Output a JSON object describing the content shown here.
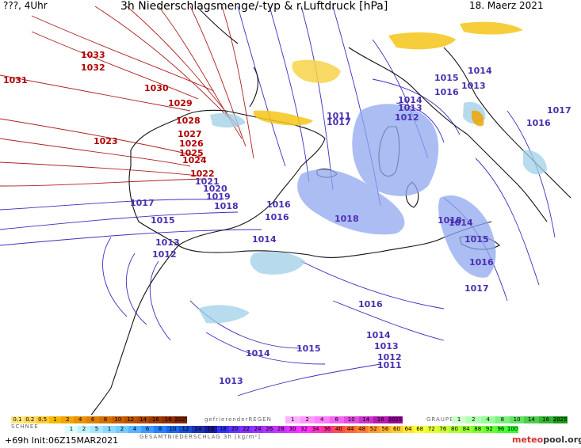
{
  "header": {
    "left": "???, 4Uhr",
    "title": "3h Niederschlagsmenge/-typ & r.Luftdruck [hPa]",
    "date": "18. Maerz 2021"
  },
  "isobar_labels": [
    {
      "text": "1033",
      "color": "#b00000"
    },
    {
      "text": "1032",
      "color": "#b00000"
    },
    {
      "text": "1031",
      "color": "#b00000"
    },
    {
      "text": "1030",
      "color": "#b00000"
    },
    {
      "text": "1029",
      "color": "#b00000"
    },
    {
      "text": "1028",
      "color": "#b00000"
    },
    {
      "text": "1027",
      "color": "#b00000"
    },
    {
      "text": "1026",
      "color": "#b00000"
    },
    {
      "text": "1025",
      "color": "#b00000"
    },
    {
      "text": "1024",
      "color": "#b00000"
    },
    {
      "text": "1023",
      "color": "#b00000"
    },
    {
      "text": "1022",
      "color": "#b00000"
    },
    {
      "text": "1021",
      "color": "#4a2fb0"
    },
    {
      "text": "1020",
      "color": "#4a2fb0"
    },
    {
      "text": "1019",
      "color": "#4a2fb0"
    },
    {
      "text": "1018",
      "color": "#4a2fb0"
    },
    {
      "text": "1017",
      "color": "#4a2fb0"
    },
    {
      "text": "1016",
      "color": "#4a2fb0"
    },
    {
      "text": "1015",
      "color": "#4a2fb0"
    },
    {
      "text": "1014",
      "color": "#4a2fb0"
    },
    {
      "text": "1013",
      "color": "#4a2fb0"
    },
    {
      "text": "1012",
      "color": "#4a2fb0"
    },
    {
      "text": "1011",
      "color": "#4a2fb0"
    },
    {
      "text": "1017",
      "color": "#4a2fb0"
    },
    {
      "text": "1016",
      "color": "#4a2fb0"
    },
    {
      "text": "1015",
      "color": "#4a2fb0"
    },
    {
      "text": "1014",
      "color": "#4a2fb0"
    },
    {
      "text": "1013",
      "color": "#4a2fb0"
    },
    {
      "text": "1012",
      "color": "#4a2fb0"
    },
    {
      "text": "1013",
      "color": "#4a2fb0"
    },
    {
      "text": "1014",
      "color": "#4a2fb0"
    },
    {
      "text": "1016",
      "color": "#4a2fb0"
    },
    {
      "text": "1018",
      "color": "#4a2fb0"
    },
    {
      "text": "1017",
      "color": "#4a2fb0"
    },
    {
      "text": "1016",
      "color": "#4a2fb0"
    },
    {
      "text": "1018",
      "color": "#4a2fb0"
    },
    {
      "text": "1014",
      "color": "#4a2fb0"
    },
    {
      "text": "1015",
      "color": "#4a2fb0"
    },
    {
      "text": "1016",
      "color": "#4a2fb0"
    },
    {
      "text": "1017",
      "color": "#4a2fb0"
    },
    {
      "text": "1016",
      "color": "#4a2fb0"
    },
    {
      "text": "1015",
      "color": "#4a2fb0"
    },
    {
      "text": "1014",
      "color": "#4a2fb0"
    },
    {
      "text": "1013",
      "color": "#4a2fb0"
    },
    {
      "text": "1012",
      "color": "#4a2fb0"
    },
    {
      "text": "1011",
      "color": "#4a2fb0"
    },
    {
      "text": "1014",
      "color": "#4a2fb0"
    },
    {
      "text": "1013",
      "color": "#4a2fb0"
    }
  ],
  "legend": {
    "snow_label": "SCHNEE",
    "freezing_rain_label": "gefrierenderREGEN",
    "graupel_label": "GRAUPEL",
    "total_label": "GESAMTNIEDERSCHLAG 3h [kg/m²]",
    "top_left_scale": [
      "0.1",
      "0.2",
      "0.5",
      "1",
      "2",
      "4",
      "6",
      "8",
      "10",
      "12",
      "14",
      "16",
      "18",
      "2025+"
    ],
    "top_left_colors": [
      "#ffe680",
      "#ffd966",
      "#ffcc33",
      "#f5b800",
      "#f0a500",
      "#e89400",
      "#e08000",
      "#d46f00",
      "#c86000",
      "#bb5200",
      "#ae4600",
      "#a03a00",
      "#922f00",
      "#842500"
    ],
    "freezing_scale": [
      "1",
      "2",
      "4",
      "8",
      "10",
      "14",
      "16",
      "2025+"
    ],
    "freezing_colors": [
      "#ffb3ff",
      "#ff99ff",
      "#ff80ff",
      "#f266f2",
      "#e04de0",
      "#cc33cc",
      "#b31ab3",
      "#990099"
    ],
    "graupel_scale": [
      "1",
      "2",
      "4",
      "8",
      "10",
      "14",
      "16",
      "2025+"
    ],
    "graupel_colors": [
      "#ccffcc",
      "#b3ffb3",
      "#99ff99",
      "#80f080",
      "#66e066",
      "#4dcc4d",
      "#33b333",
      "#1a991a"
    ],
    "snow_scale": [
      "1",
      "2",
      "5",
      "1",
      "2",
      "4",
      "6",
      "8",
      "10",
      "12",
      "14",
      "16"
    ],
    "snow_colors": [
      "#d9ffff",
      "#bff2ff",
      "#a6e6ff",
      "#8cd9ff",
      "#73ccff",
      "#59b3ff",
      "#4099ff",
      "#2680ff",
      "#1a66e6",
      "#1a4dcc",
      "#1a33b3",
      "#1a1a99"
    ],
    "total_scale": [
      "18",
      "20",
      "22",
      "24",
      "26",
      "28",
      "30",
      "32",
      "34",
      "36",
      "40",
      "44",
      "48",
      "52",
      "56",
      "60",
      "64",
      "68",
      "72",
      "76",
      "80",
      "84",
      "88",
      "92",
      "96",
      "100"
    ],
    "total_colors": [
      "#3333ff",
      "#6633ff",
      "#8033ff",
      "#9933ff",
      "#b333ff",
      "#cc33ff",
      "#e633ff",
      "#ff33ff",
      "#ff33cc",
      "#ff3399",
      "#ff4d4d",
      "#ff6633",
      "#ff8033",
      "#ff9933",
      "#ffb333",
      "#ffcc33",
      "#ffe633",
      "#ffff33",
      "#e6ff33",
      "#ccff33",
      "#b3ff33",
      "#99ff33",
      "#80ff33",
      "#66ff33",
      "#4dff33",
      "#33ff33"
    ]
  },
  "footer": {
    "left": "+69h  Init:06Z15MAR2021",
    "logo_a": "meteo",
    "logo_b": "pool",
    "logo_c": ".org"
  }
}
